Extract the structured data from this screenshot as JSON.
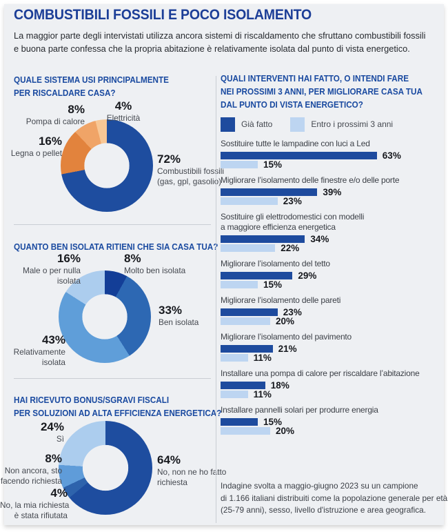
{
  "header": {
    "title": "COMBUSTIBILI FOSSILI E POCO ISOLAMENTO",
    "subtitle": "La maggior parte degli intervistati utilizza ancora sistemi di riscaldamento che sfruttano combustibili fossili\ne buona parte confessa che la propria abitazione è relativamente isolata dal punto di vista energetico."
  },
  "colors": {
    "background": "#eef0f3",
    "title_blue": "#1c3e97",
    "heading_blue": "#1a4aa0",
    "dark_blue": "#1e4d9f",
    "navy": "#133e97",
    "medium_blue": "#2d68b3",
    "light_blue": "#5f9ed9",
    "pale_blue": "#accdee",
    "orange": "#e2833d",
    "light_orange": "#f0a467",
    "pale_orange": "#f8c795"
  },
  "chart_data": [
    {
      "type": "pie",
      "title": "QUALE SISTEMA USI PRINCIPALMENTE\nPER RISCALDARE CASA?",
      "labels": [
        "Combustibili fossili (gas, gpl, gasolio)",
        "Legna o pellet",
        "Pompa di calore",
        "Elettricità"
      ],
      "values": [
        72,
        16,
        8,
        4
      ],
      "colors": [
        "#1e4d9f",
        "#e2833d",
        "#f0a467",
        "#f8c795"
      ],
      "callouts": [
        {
          "value": "72%",
          "text": "Combustibili fossili\n(gas, gpl, gasolio)"
        },
        {
          "value": "16%",
          "text": "Legna o pellet"
        },
        {
          "value": "8%",
          "text": "Pompa di calore"
        },
        {
          "value": "4%",
          "text": "Elettricità"
        }
      ]
    },
    {
      "type": "pie",
      "title": "QUANTO BEN ISOLATA RITIENI CHE SIA CASA TUA?",
      "labels": [
        "Molto ben isolata",
        "Ben isolata",
        "Relativamente isolata",
        "Male o per nulla isolata"
      ],
      "values": [
        8,
        33,
        43,
        16
      ],
      "colors": [
        "#133e97",
        "#2d68b3",
        "#5f9ed9",
        "#accdee"
      ],
      "callouts": [
        {
          "value": "8%",
          "text": "Molto ben isolata"
        },
        {
          "value": "33%",
          "text": "Ben isolata"
        },
        {
          "value": "43%",
          "text": "Relativamente\nisolata"
        },
        {
          "value": "16%",
          "text": "Male o per nulla\nisolata"
        }
      ]
    },
    {
      "type": "pie",
      "title": "HAI RICEVUTO BONUS/SGRAVI FISCALI\nPER SOLUZIONI AD ALTA EFFICIENZA ENERGETICA?",
      "labels": [
        "No, non ne ho fatto richiesta",
        "No, la mia richiesta è stata rifiutata",
        "Non ancora, sto facendo richiesta",
        "Sì"
      ],
      "values": [
        64,
        4,
        8,
        24
      ],
      "colors": [
        "#1e4d9f",
        "#2e63ac",
        "#5f9cd9",
        "#accdee"
      ],
      "callouts": [
        {
          "value": "64%",
          "text": "No, non ne ho fatto\nrichiesta"
        },
        {
          "value": "4%",
          "text": "No, la mia richiesta\nè stata rifiutata"
        },
        {
          "value": "8%",
          "text": "Non ancora, sto\nfacendo richiesta"
        },
        {
          "value": "24%",
          "text": "Sì"
        }
      ]
    },
    {
      "type": "bar",
      "title": "QUALI INTERVENTI HAI FATTO, O INTENDI FARE\nNEI PROSSIMI 3 ANNI, PER MIGLIORARE CASA TUA\nDAL PUNTO DI VISTA ENERGETICO?",
      "legend": [
        "Già fatto",
        "Entro i prossimi 3 anni"
      ],
      "legend_position": "top",
      "orientation": "horizontal",
      "xlim": [
        0,
        100
      ],
      "colors": [
        "#1e4b9e",
        "#bdd5f1"
      ],
      "categories": [
        "Sostituire tutte le lampadine con luci a Led",
        "Migliorare l’isolamento delle finestre e/o delle porte",
        "Sostituire gli elettrodomestici con modelli\na maggiore efficienza energetica",
        "Migliorare l’isolamento del tetto",
        "Migliorare l’isolamento delle pareti",
        "Migliorare l’isolamento del pavimento",
        "Installare una pompa di calore per riscaldare l’abitazione",
        "Installare pannelli solari per produrre energia"
      ],
      "series": [
        {
          "name": "Già fatto",
          "values": [
            63,
            39,
            34,
            29,
            23,
            21,
            18,
            15
          ]
        },
        {
          "name": "Entro i prossimi 3 anni",
          "values": [
            15,
            23,
            22,
            15,
            20,
            11,
            11,
            20
          ]
        }
      ]
    }
  ],
  "footer": {
    "note": "Indagine svolta a maggio-giugno 2023 su un campione\ndi 1.166 italiani distribuiti come la popolazione generale per età\n(25-79 anni), sesso, livello d'istruzione e area geografica."
  }
}
